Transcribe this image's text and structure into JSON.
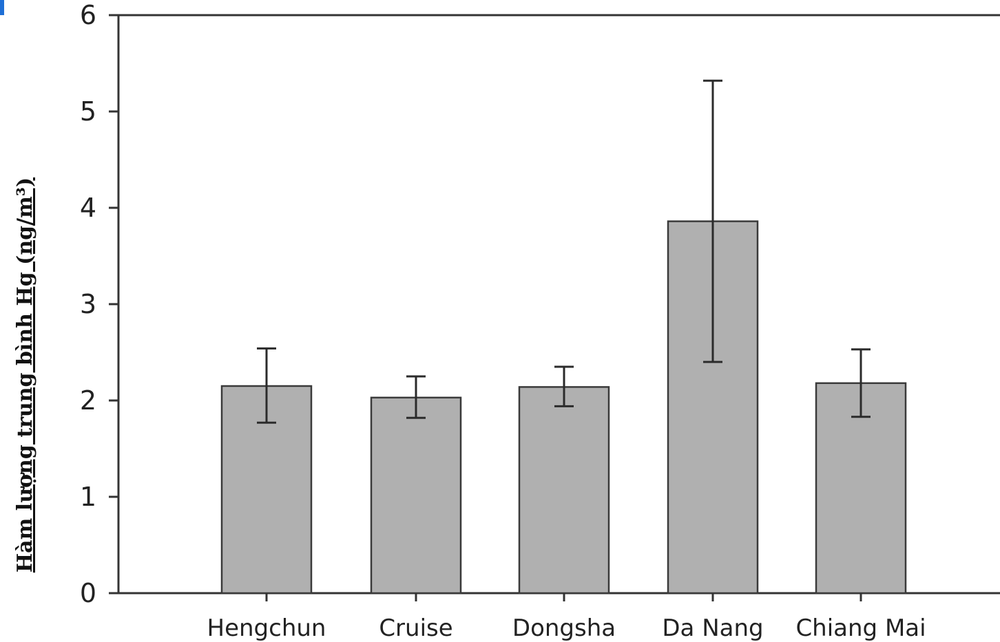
{
  "chart_data": {
    "type": "bar",
    "categories": [
      "Hengchun",
      "Cruise",
      "Dongsha",
      "Da Nang",
      "Chiang Mai"
    ],
    "values": [
      2.15,
      2.03,
      2.14,
      3.86,
      2.18
    ],
    "error_low": [
      1.77,
      1.82,
      1.94,
      2.4,
      1.83
    ],
    "error_high": [
      2.54,
      2.25,
      2.35,
      5.32,
      2.53
    ],
    "title": "",
    "xlabel": "",
    "ylabel": "Hàm lượng trung bình Hg (ng/m³)",
    "ylim": [
      0,
      6
    ],
    "yticks": [
      "0",
      "1",
      "2",
      "3",
      "4",
      "5",
      "6"
    ],
    "bar_color": "#b0b0b0",
    "grid": false
  }
}
